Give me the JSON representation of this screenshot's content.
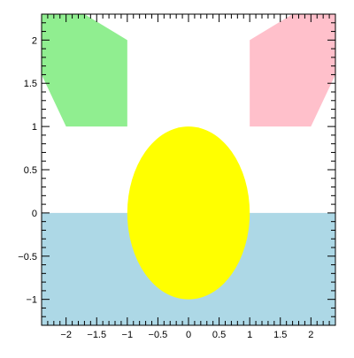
{
  "chart_data": {
    "type": "area",
    "xlim": [
      -2.4,
      2.4
    ],
    "ylim": [
      -1.3,
      2.3
    ],
    "grid": false,
    "title": "",
    "xlabel": "",
    "ylabel": "",
    "x_ticks": [
      -2,
      -1.5,
      -1,
      -0.5,
      0,
      0.5,
      1,
      1.5,
      2
    ],
    "x_tick_labels": [
      "−2",
      "−1.5",
      "−1",
      "−0.5",
      "0",
      "0.5",
      "1",
      "1.5",
      "2"
    ],
    "y_ticks": [
      -1,
      -0.5,
      0,
      0.5,
      1,
      1.5,
      2
    ],
    "y_tick_labels": [
      "−1",
      "−0.5",
      "0",
      "0.5",
      "1",
      "1.5",
      "2"
    ],
    "shapes": [
      {
        "kind": "rect",
        "name": "lower-band",
        "color": "#add8e6",
        "x0": -2.4,
        "x1": 2.4,
        "y0": -1.3,
        "y1": 0
      },
      {
        "kind": "ellipse",
        "name": "center-ellipse",
        "color": "#ffff00",
        "cx": 0,
        "cy": 0,
        "rx": 1,
        "ry": 1
      },
      {
        "kind": "polygon",
        "name": "left-polygon",
        "color": "#90ee90",
        "points": [
          [
            -2.4,
            2.3
          ],
          [
            -1.7,
            2.3
          ],
          [
            -1,
            2
          ],
          [
            -1,
            1
          ],
          [
            -2,
            1
          ],
          [
            -2.4,
            1.6
          ]
        ]
      },
      {
        "kind": "polygon",
        "name": "right-polygon",
        "color": "#ffc0cb",
        "points": [
          [
            1,
            1
          ],
          [
            1,
            2
          ],
          [
            1.7,
            2.3
          ],
          [
            2.4,
            2.3
          ],
          [
            2.4,
            1.6
          ],
          [
            2,
            1
          ]
        ]
      }
    ]
  }
}
